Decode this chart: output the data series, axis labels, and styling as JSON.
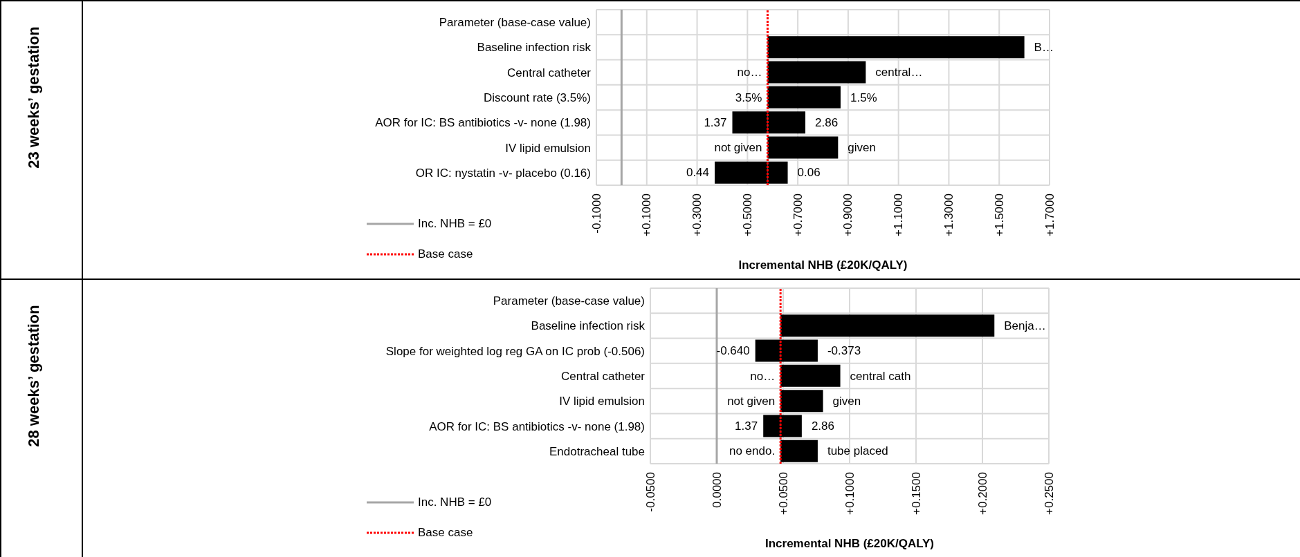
{
  "chart_data": [
    {
      "type": "bar",
      "orientation": "horizontal",
      "ylabel": "23 weeks’ gestation",
      "xlabel": "Incremental NHB (£20K/QALY)",
      "categories": [
        "Parameter (base-case value)",
        "Baseline infection risk",
        "Central catheter",
        "Discount rate (3.5%)",
        "AOR for IC: BS antibiotics -v- none (1.98)",
        "IV lipid emulsion",
        "OR IC: nystatin -v- placebo (0.16)"
      ],
      "series": [
        {
          "color": "#000000",
          "base": [
            null,
            null,
            null,
            null,
            0.58,
            null,
            0.58
          ],
          "values": [
            null,
            null,
            null,
            null,
            -0.14,
            null,
            -0.21
          ]
        },
        {
          "color": "#000000",
          "base": [
            null,
            0.58,
            0.58,
            0.58,
            0.58,
            0.58,
            0.58
          ],
          "values": [
            null,
            1.02,
            0.39,
            0.29,
            0.15,
            0.28,
            0.08
          ]
        }
      ],
      "annotations": [
        {
          "text": "B…",
          "x": 1.6,
          "y": "Baseline infection risk"
        },
        {
          "text": "no…",
          "x": 0.58,
          "y": "Central catheter"
        },
        {
          "text": "central…",
          "x": 0.97,
          "y": "Central catheter"
        },
        {
          "text": "3.5%",
          "x": 0.58,
          "y": "Discount rate (3.5%)"
        },
        {
          "text": "1.5%",
          "x": 0.87,
          "y": "Discount rate (3.5%)"
        },
        {
          "text": "1.37",
          "x": 0.44,
          "y": "AOR for IC: BS antibiotics -v- none (1.98)"
        },
        {
          "text": "2.86",
          "x": 0.73,
          "y": "AOR for IC: BS antibiotics -v- none (1.98)"
        },
        {
          "text": "not given",
          "x": 0.58,
          "y": "IV lipid emulsion"
        },
        {
          "text": "given",
          "x": 0.86,
          "y": "IV lipid emulsion"
        },
        {
          "text": "0.44",
          "x": 0.37,
          "y": "OR IC: nystatin -v- placebo (0.16)"
        },
        {
          "text": "0.06",
          "x": 0.66,
          "y": "OR IC: nystatin -v- placebo (0.16)"
        }
      ],
      "xlim": [
        -0.1,
        1.7
      ],
      "xticks": [
        {
          "value": -0.1,
          "label": "-0.1000"
        },
        {
          "value": 0.1,
          "label": "+0.1000"
        },
        {
          "value": 0.3,
          "label": "+0.3000"
        },
        {
          "value": 0.5,
          "label": "+0.5000"
        },
        {
          "value": 0.7,
          "label": "+0.7000"
        },
        {
          "value": 0.9,
          "label": "+0.9000"
        },
        {
          "value": 1.1,
          "label": "+1.1000"
        },
        {
          "value": 1.3,
          "label": "+1.3000"
        },
        {
          "value": 1.5,
          "label": "+1.5000"
        },
        {
          "value": 1.7,
          "label": "+1.7000"
        }
      ],
      "grid": true,
      "legend": "bottom left",
      "ref_lines": [
        {
          "axis": "x",
          "value": 0,
          "label": "Inc. NHB = £0",
          "color": "#a6a6a6",
          "line_style": "solid"
        },
        {
          "axis": "x",
          "value": 0.58,
          "label": "Base case",
          "color": "#ff0000",
          "line_style": "dotted"
        }
      ]
    },
    {
      "type": "bar",
      "orientation": "horizontal",
      "ylabel": "28 weeks’ gestation",
      "xlabel": "Incremental NHB (£20K/QALY)",
      "categories": [
        "Parameter (base-case value)",
        "Baseline infection risk",
        "Slope for weighted log reg GA on IC prob (-0.506)",
        "Central catheter",
        "IV lipid emulsion",
        "AOR for IC: BS antibiotics -v- none (1.98)",
        "Endotracheal tube"
      ],
      "series": [
        {
          "color": "#000000",
          "base": [
            null,
            null,
            0.048,
            null,
            null,
            0.048,
            null
          ],
          "values": [
            null,
            null,
            -0.019,
            null,
            null,
            -0.013,
            null
          ]
        },
        {
          "color": "#000000",
          "base": [
            null,
            0.048,
            0.048,
            0.048,
            0.048,
            0.048,
            0.048
          ],
          "values": [
            null,
            0.161,
            0.028,
            0.045,
            0.032,
            0.016,
            0.028
          ]
        }
      ],
      "annotations": [
        {
          "text": "Benja…",
          "x": 0.209,
          "y": "Baseline infection risk"
        },
        {
          "text": "-0.640",
          "x": 0.029,
          "y": "Slope for weighted log reg GA on IC prob (-0.506)"
        },
        {
          "text": "-0.373",
          "x": 0.076,
          "y": "Slope for weighted log reg GA on IC prob (-0.506)"
        },
        {
          "text": "no…",
          "x": 0.048,
          "y": "Central catheter"
        },
        {
          "text": "central cath",
          "x": 0.093,
          "y": "Central catheter"
        },
        {
          "text": "not given",
          "x": 0.048,
          "y": "IV lipid emulsion"
        },
        {
          "text": "given",
          "x": 0.08,
          "y": "IV lipid emulsion"
        },
        {
          "text": "1.37",
          "x": 0.035,
          "y": "AOR for IC: BS antibiotics -v- none (1.98)"
        },
        {
          "text": "2.86",
          "x": 0.064,
          "y": "AOR for IC: BS antibiotics -v- none (1.98)"
        },
        {
          "text": "no endo.",
          "x": 0.048,
          "y": "Endotracheal tube"
        },
        {
          "text": "tube placed",
          "x": 0.076,
          "y": "Endotracheal tube"
        }
      ],
      "xlim": [
        -0.05,
        0.25
      ],
      "xticks": [
        {
          "value": -0.05,
          "label": "-0.0500"
        },
        {
          "value": 0,
          "label": "0.0000"
        },
        {
          "value": 0.05,
          "label": "+0.0500"
        },
        {
          "value": 0.1,
          "label": "+0.1000"
        },
        {
          "value": 0.15,
          "label": "+0.1500"
        },
        {
          "value": 0.2,
          "label": "+0.2000"
        },
        {
          "value": 0.25,
          "label": "+0.2500"
        }
      ],
      "grid": true,
      "legend": "bottom left",
      "ref_lines": [
        {
          "axis": "x",
          "value": 0,
          "label": "Inc. NHB = £0",
          "color": "#a6a6a6",
          "line_style": "solid"
        },
        {
          "axis": "x",
          "value": 0.048,
          "label": "Base case",
          "color": "#ff0000",
          "line_style": "dotted"
        }
      ]
    }
  ]
}
